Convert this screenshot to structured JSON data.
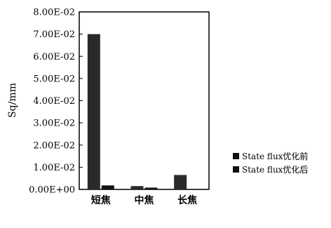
{
  "chart_data": {
    "type": "bar",
    "categories": [
      "短焦",
      "中焦",
      "长焦"
    ],
    "series": [
      {
        "name": "State flux优化前",
        "values": [
          0.07,
          0.0015,
          0.0065
        ]
      },
      {
        "name": "State flux优化后",
        "values": [
          0.0018,
          0.0008,
          0.0
        ]
      }
    ],
    "ylabel": "Sq/mm",
    "xlabel": "",
    "ylim": [
      0,
      0.08
    ],
    "y_ticks": [
      "0.00E+00",
      "1.00E-02",
      "2.00E-02",
      "3.00E-02",
      "4.00E-02",
      "5.00E-02",
      "6.00E-02",
      "7.00E-02",
      "8.00E-02"
    ],
    "legend_position": "right",
    "grid": false,
    "colors": {
      "series_0": "#2a2a2a",
      "series_1": "#111111"
    }
  }
}
